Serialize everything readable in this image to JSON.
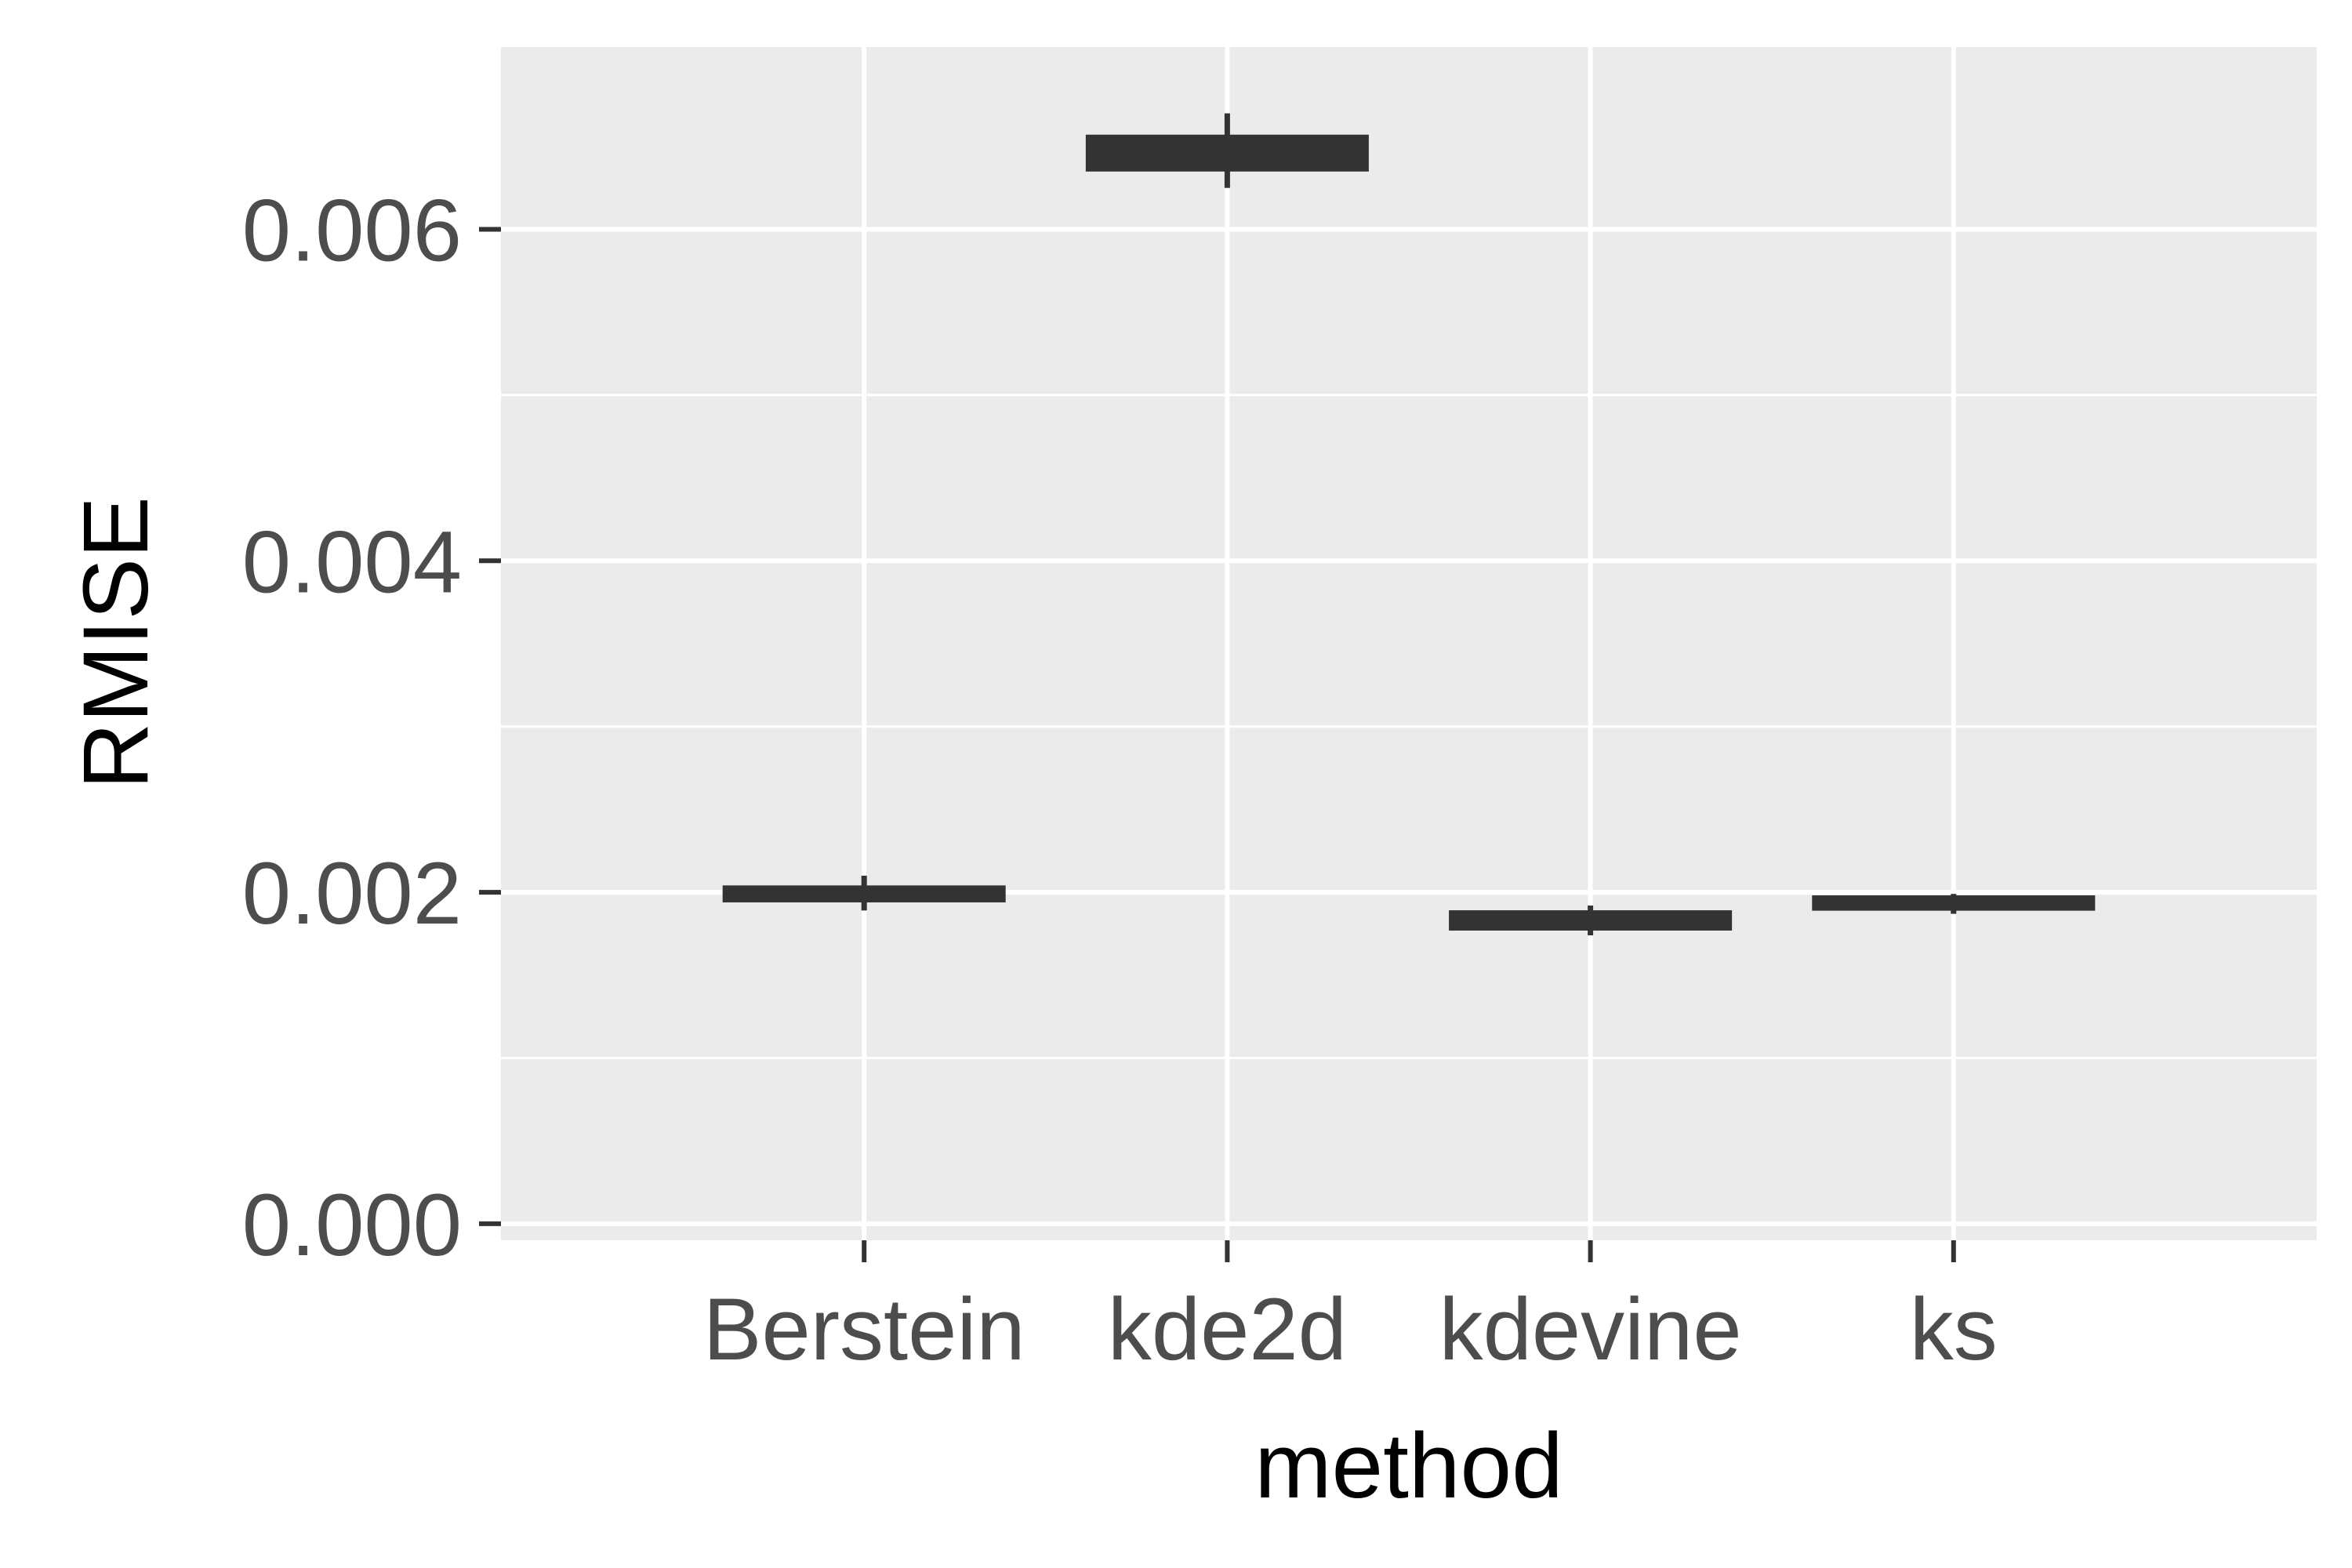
{
  "chart_data": {
    "type": "boxplot",
    "xlabel": "method",
    "ylabel": "RMISE",
    "categories": [
      "Berstein",
      "kde2d",
      "kdevine",
      "ks"
    ],
    "ylim": [
      -0.0001,
      0.0071
    ],
    "yticks": [
      0.0,
      0.002,
      0.004,
      0.006
    ],
    "ytick_labels": [
      "0.000",
      "0.002",
      "0.004",
      "0.006"
    ],
    "grid": true,
    "background": "#ebebeb",
    "box_color": "#333333",
    "boxes": [
      {
        "category": "Berstein",
        "min": 0.00189,
        "q1": 0.00196,
        "median": 0.00199,
        "q3": 0.00202,
        "max": 0.0021
      },
      {
        "category": "kde2d",
        "min": 0.00625,
        "q1": 0.00637,
        "median": 0.00646,
        "q3": 0.00655,
        "max": 0.0067
      },
      {
        "category": "kdevine",
        "min": 0.00174,
        "q1": 0.00179,
        "median": 0.00183,
        "q3": 0.00187,
        "max": 0.00192
      },
      {
        "category": "ks",
        "min": 0.00187,
        "q1": 0.00191,
        "median": 0.00193,
        "q3": 0.00196,
        "max": 0.00199
      }
    ]
  }
}
